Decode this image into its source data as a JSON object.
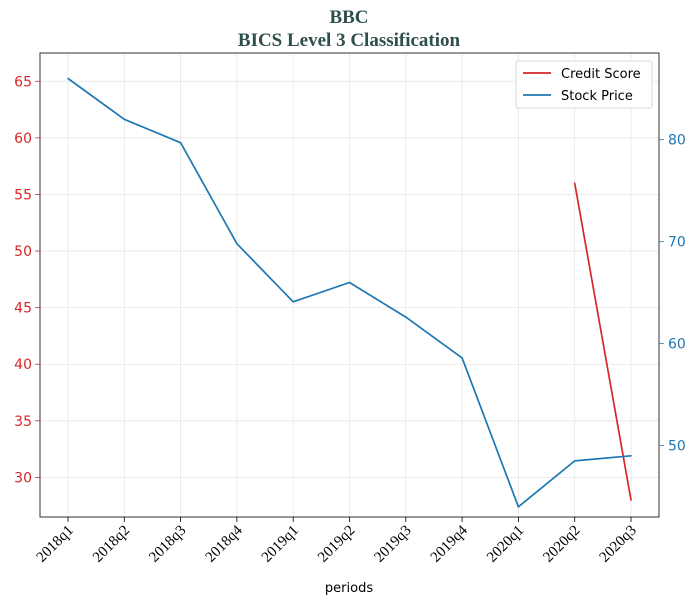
{
  "chart_data": {
    "type": "line",
    "title": "BBC",
    "subtitle": "BICS Level 3 Classification",
    "xlabel": "periods",
    "categories": [
      "2018q1",
      "2018q2",
      "2018q3",
      "2018q4",
      "2019q1",
      "2019q2",
      "2019q3",
      "2019q4",
      "2020q1",
      "2020q2",
      "2020q3"
    ],
    "y_left": {
      "ylim": [
        26.5,
        67.5
      ],
      "ticks": [
        30,
        35,
        40,
        45,
        50,
        55,
        60,
        65
      ],
      "color": "#d62728"
    },
    "y_right": {
      "ylim": [
        43.0,
        88.5
      ],
      "ticks": [
        50,
        60,
        70,
        80
      ],
      "color": "#1f77b4"
    },
    "grid": true,
    "legend_position": "top-right",
    "series": [
      {
        "name": "Credit Score",
        "axis": "left",
        "color": "#d62728",
        "values": [
          null,
          null,
          null,
          null,
          null,
          null,
          null,
          null,
          null,
          56,
          28
        ]
      },
      {
        "name": "Stock Price",
        "axis": "right",
        "color": "#1f77b4",
        "values": [
          86.0,
          82.0,
          79.7,
          69.8,
          64.1,
          66.0,
          62.6,
          58.6,
          44.0,
          48.5,
          49.0
        ]
      }
    ]
  }
}
